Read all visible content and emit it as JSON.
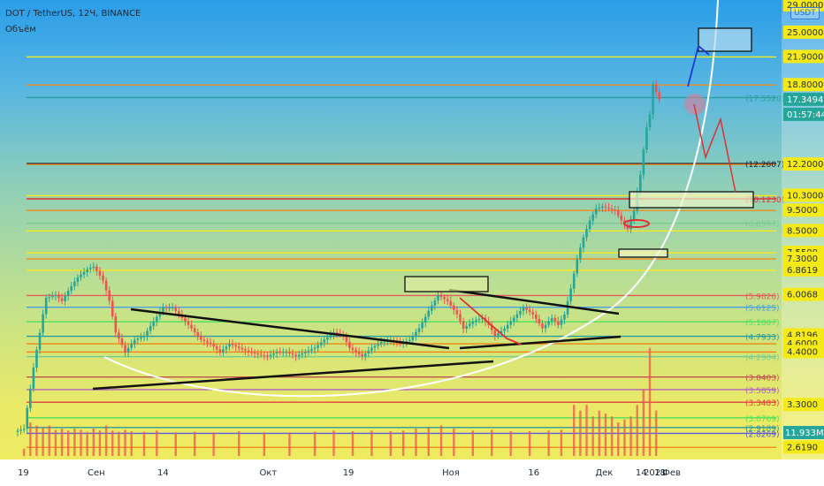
{
  "header": {
    "title": "DOT / TetherUS, 12Ч, BINANCE",
    "volume_label": "Объём",
    "currency": "USDT"
  },
  "chart_data": {
    "type": "candlestick",
    "symbol": "DOT / TetherUS",
    "interval": "12Ч",
    "exchange": "BINANCE",
    "y_scale": "log",
    "y_range": [
      2.5,
      29
    ],
    "x_tick_labels": [
      "19",
      "Сен",
      "14",
      "Окт",
      "19",
      "Ноя",
      "16",
      "Дек",
      "14",
      "2021",
      "18",
      "Фев"
    ],
    "current_price": "17.3494",
    "countdown": "01:57:44",
    "volume_label": "11.933M",
    "price_axis_labels": [
      "29.0000",
      "25.0000",
      "21.9000",
      "18.8000",
      "17.3494",
      "12.2000",
      "10.3000",
      "9.5000",
      "8.5000",
      "7.5500",
      "7.3000",
      "6.8619",
      "6.0068",
      "4.8196",
      "4.6000",
      "4.4000",
      "3.3000",
      "2.6190"
    ],
    "level_labels": [
      "17.5520",
      "12.2607",
      "10.1230",
      "8.8597",
      "5.9826",
      "5.6125",
      "5.1867",
      "4.7933",
      "4.2904",
      "3.8403",
      "3.5859",
      "3.3483",
      "3.0769",
      "2.9189",
      "2.8269"
    ],
    "price_path": [
      [
        0,
        2.85
      ],
      [
        3,
        2.9
      ],
      [
        5,
        3.6
      ],
      [
        8,
        4.9
      ],
      [
        10,
        5.9
      ],
      [
        13,
        6.0
      ],
      [
        15,
        5.8
      ],
      [
        18,
        6.3
      ],
      [
        20,
        6.6
      ],
      [
        23,
        6.9
      ],
      [
        25,
        7.0
      ],
      [
        28,
        6.5
      ],
      [
        30,
        5.8
      ],
      [
        32,
        4.9
      ],
      [
        35,
        4.4
      ],
      [
        38,
        4.7
      ],
      [
        41,
        4.8
      ],
      [
        44,
        5.2
      ],
      [
        47,
        5.6
      ],
      [
        50,
        5.6
      ],
      [
        53,
        5.3
      ],
      [
        56,
        5.0
      ],
      [
        59,
        4.7
      ],
      [
        62,
        4.6
      ],
      [
        65,
        4.4
      ],
      [
        68,
        4.6
      ],
      [
        71,
        4.5
      ],
      [
        74,
        4.4
      ],
      [
        77,
        4.35
      ],
      [
        80,
        4.3
      ],
      [
        83,
        4.4
      ],
      [
        86,
        4.4
      ],
      [
        89,
        4.3
      ],
      [
        92,
        4.4
      ],
      [
        95,
        4.5
      ],
      [
        98,
        4.7
      ],
      [
        101,
        4.9
      ],
      [
        104,
        4.8
      ],
      [
        106,
        4.5
      ],
      [
        108,
        4.4
      ],
      [
        110,
        4.3
      ],
      [
        113,
        4.5
      ],
      [
        116,
        4.65
      ],
      [
        119,
        4.7
      ],
      [
        122,
        4.6
      ],
      [
        125,
        4.7
      ],
      [
        128,
        5.0
      ],
      [
        131,
        5.5
      ],
      [
        134,
        6.0
      ],
      [
        137,
        5.8
      ],
      [
        140,
        5.4
      ],
      [
        142,
        5.0
      ],
      [
        145,
        5.2
      ],
      [
        148,
        5.3
      ],
      [
        150,
        5.1
      ],
      [
        152,
        4.8
      ],
      [
        155,
        5.0
      ],
      [
        158,
        5.3
      ],
      [
        161,
        5.6
      ],
      [
        164,
        5.4
      ],
      [
        167,
        5.0
      ],
      [
        170,
        5.3
      ],
      [
        172,
        5.1
      ],
      [
        174,
        5.4
      ],
      [
        176,
        6.2
      ],
      [
        178,
        7.3
      ],
      [
        180,
        8.2
      ],
      [
        182,
        9.0
      ],
      [
        184,
        9.6
      ],
      [
        186,
        9.7
      ],
      [
        188,
        9.6
      ],
      [
        190,
        9.5
      ],
      [
        192,
        9.0
      ],
      [
        194,
        8.6
      ],
      [
        196,
        9.5
      ],
      [
        198,
        11.5
      ],
      [
        200,
        15.0
      ],
      [
        201,
        16.0
      ],
      [
        202,
        18.8
      ],
      [
        204,
        17.35
      ]
    ],
    "volume_bars": [
      [
        2,
        2.6
      ],
      [
        4,
        3.0
      ],
      [
        6,
        2.95
      ],
      [
        8,
        2.92
      ],
      [
        10,
        2.95
      ],
      [
        12,
        2.88
      ],
      [
        14,
        2.9
      ],
      [
        16,
        2.87
      ],
      [
        18,
        2.9
      ],
      [
        20,
        2.88
      ],
      [
        22,
        2.85
      ],
      [
        24,
        2.9
      ],
      [
        26,
        2.87
      ],
      [
        28,
        2.95
      ],
      [
        30,
        2.87
      ],
      [
        32,
        2.85
      ],
      [
        34,
        2.88
      ],
      [
        36,
        2.86
      ],
      [
        40,
        2.85
      ],
      [
        44,
        2.87
      ],
      [
        50,
        2.84
      ],
      [
        56,
        2.85
      ],
      [
        62,
        2.84
      ],
      [
        70,
        2.86
      ],
      [
        78,
        2.84
      ],
      [
        86,
        2.84
      ],
      [
        94,
        2.85
      ],
      [
        100,
        2.87
      ],
      [
        106,
        2.86
      ],
      [
        112,
        2.87
      ],
      [
        118,
        2.86
      ],
      [
        122,
        2.87
      ],
      [
        126,
        2.9
      ],
      [
        130,
        2.92
      ],
      [
        134,
        2.95
      ],
      [
        138,
        2.9
      ],
      [
        144,
        2.87
      ],
      [
        150,
        2.88
      ],
      [
        156,
        2.86
      ],
      [
        162,
        2.86
      ],
      [
        168,
        2.87
      ],
      [
        172,
        2.88
      ],
      [
        176,
        3.3
      ],
      [
        178,
        3.2
      ],
      [
        180,
        3.3
      ],
      [
        182,
        3.1
      ],
      [
        184,
        3.2
      ],
      [
        186,
        3.15
      ],
      [
        188,
        3.1
      ],
      [
        190,
        3.0
      ],
      [
        192,
        3.05
      ],
      [
        194,
        3.1
      ],
      [
        196,
        3.3
      ],
      [
        198,
        3.6
      ],
      [
        200,
        4.5
      ],
      [
        202,
        3.2
      ]
    ],
    "levels": [
      {
        "price": 21.9,
        "color": "#f5ea18",
        "label": "21.9000"
      },
      {
        "price": 18.8,
        "color": "#f08c1e",
        "label": "18.8000"
      },
      {
        "price": 17.552,
        "color": "#2aa09a",
        "label": "17.5520"
      },
      {
        "price": 12.2607,
        "color": "#1c2430",
        "label": "12.2607"
      },
      {
        "price": 12.2,
        "color": "#f08c1e",
        "label": "12.2000"
      },
      {
        "price": 10.3,
        "color": "#f5ea18",
        "label": "10.3000"
      },
      {
        "price": 10.123,
        "color": "#e03030",
        "label": "10.1230"
      },
      {
        "price": 9.5,
        "color": "#f08c1e",
        "label": "9.5000"
      },
      {
        "price": 8.8597,
        "color": "#7acb8e",
        "label": "8.8597"
      },
      {
        "price": 8.5,
        "color": "#f5ea18",
        "label": "8.5000"
      },
      {
        "price": 7.55,
        "color": "#f5ea18",
        "label": "7.5500"
      },
      {
        "price": 7.3,
        "color": "#f08c1e",
        "label": "7.3000"
      },
      {
        "price": 6.8619,
        "color": "#f5ea18",
        "label": "6.8619"
      },
      {
        "price": 5.9826,
        "color": "#e06060",
        "label": "5.9826"
      },
      {
        "price": 5.6125,
        "color": "#4aa0e0",
        "label": "5.6125"
      },
      {
        "price": 5.1867,
        "color": "#4ee05a",
        "label": "5.1867"
      },
      {
        "price": 4.7933,
        "color": "#2a9a9a",
        "label": "4.7933"
      },
      {
        "price": 4.6,
        "color": "#f08c1e",
        "label": "4.6000"
      },
      {
        "price": 4.2904,
        "color": "#7acb8e",
        "label": "4.2904"
      },
      {
        "price": 4.4,
        "color": "#f08c1e",
        "label": "4.4000"
      },
      {
        "price": 3.8403,
        "color": "#c05050",
        "label": "3.8403"
      },
      {
        "price": 3.5859,
        "color": "#b060c0",
        "label": "3.5859"
      },
      {
        "price": 3.3483,
        "color": "#e04040",
        "label": "3.3483"
      },
      {
        "price": 3.0769,
        "color": "#4ee05a",
        "label": "3.0769"
      },
      {
        "price": 2.9189,
        "color": "#2a9a9a",
        "label": "2.9189"
      },
      {
        "price": 2.8269,
        "color": "#5a5ae0",
        "label": "2.8269"
      },
      {
        "price": 2.619,
        "color": "#f08c1e",
        "label": "2.6190"
      }
    ],
    "colors": {
      "up": "#26a69a",
      "down": "#ef5350",
      "price_badge": "#26a69a",
      "volume_badge": "#26a69a"
    }
  }
}
